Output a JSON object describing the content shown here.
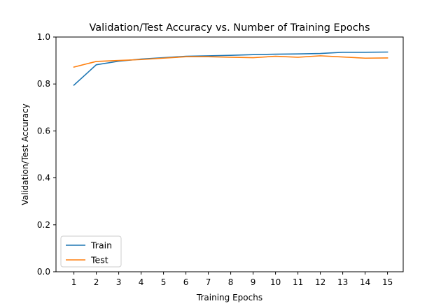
{
  "chart_data": {
    "type": "line",
    "title": "Validation/Test Accuracy vs. Number of Training Epochs",
    "xlabel": "Training Epochs",
    "ylabel": "Validation/Test Accuracy",
    "x": [
      1,
      2,
      3,
      4,
      5,
      6,
      7,
      8,
      9,
      10,
      11,
      12,
      13,
      14,
      15
    ],
    "xticks": [
      1,
      2,
      3,
      4,
      5,
      6,
      7,
      8,
      9,
      10,
      11,
      12,
      13,
      14,
      15
    ],
    "yticks": [
      0.0,
      0.2,
      0.4,
      0.6,
      0.8,
      1.0
    ],
    "ytick_labels": [
      "0.0",
      "0.2",
      "0.4",
      "0.6",
      "0.8",
      "1.0"
    ],
    "xlim": [
      0.2,
      15.7
    ],
    "ylim": [
      0.0,
      1.0
    ],
    "grid": false,
    "legend_position": "lower-left",
    "series": [
      {
        "name": "Train",
        "color": "#1f77b4",
        "values": [
          0.795,
          0.882,
          0.897,
          0.906,
          0.912,
          0.918,
          0.92,
          0.922,
          0.925,
          0.927,
          0.928,
          0.93,
          0.935,
          0.935,
          0.936
        ]
      },
      {
        "name": "Test",
        "color": "#ff7f0e",
        "values": [
          0.872,
          0.896,
          0.9,
          0.904,
          0.91,
          0.916,
          0.916,
          0.914,
          0.912,
          0.918,
          0.914,
          0.92,
          0.915,
          0.91,
          0.911
        ]
      }
    ]
  }
}
